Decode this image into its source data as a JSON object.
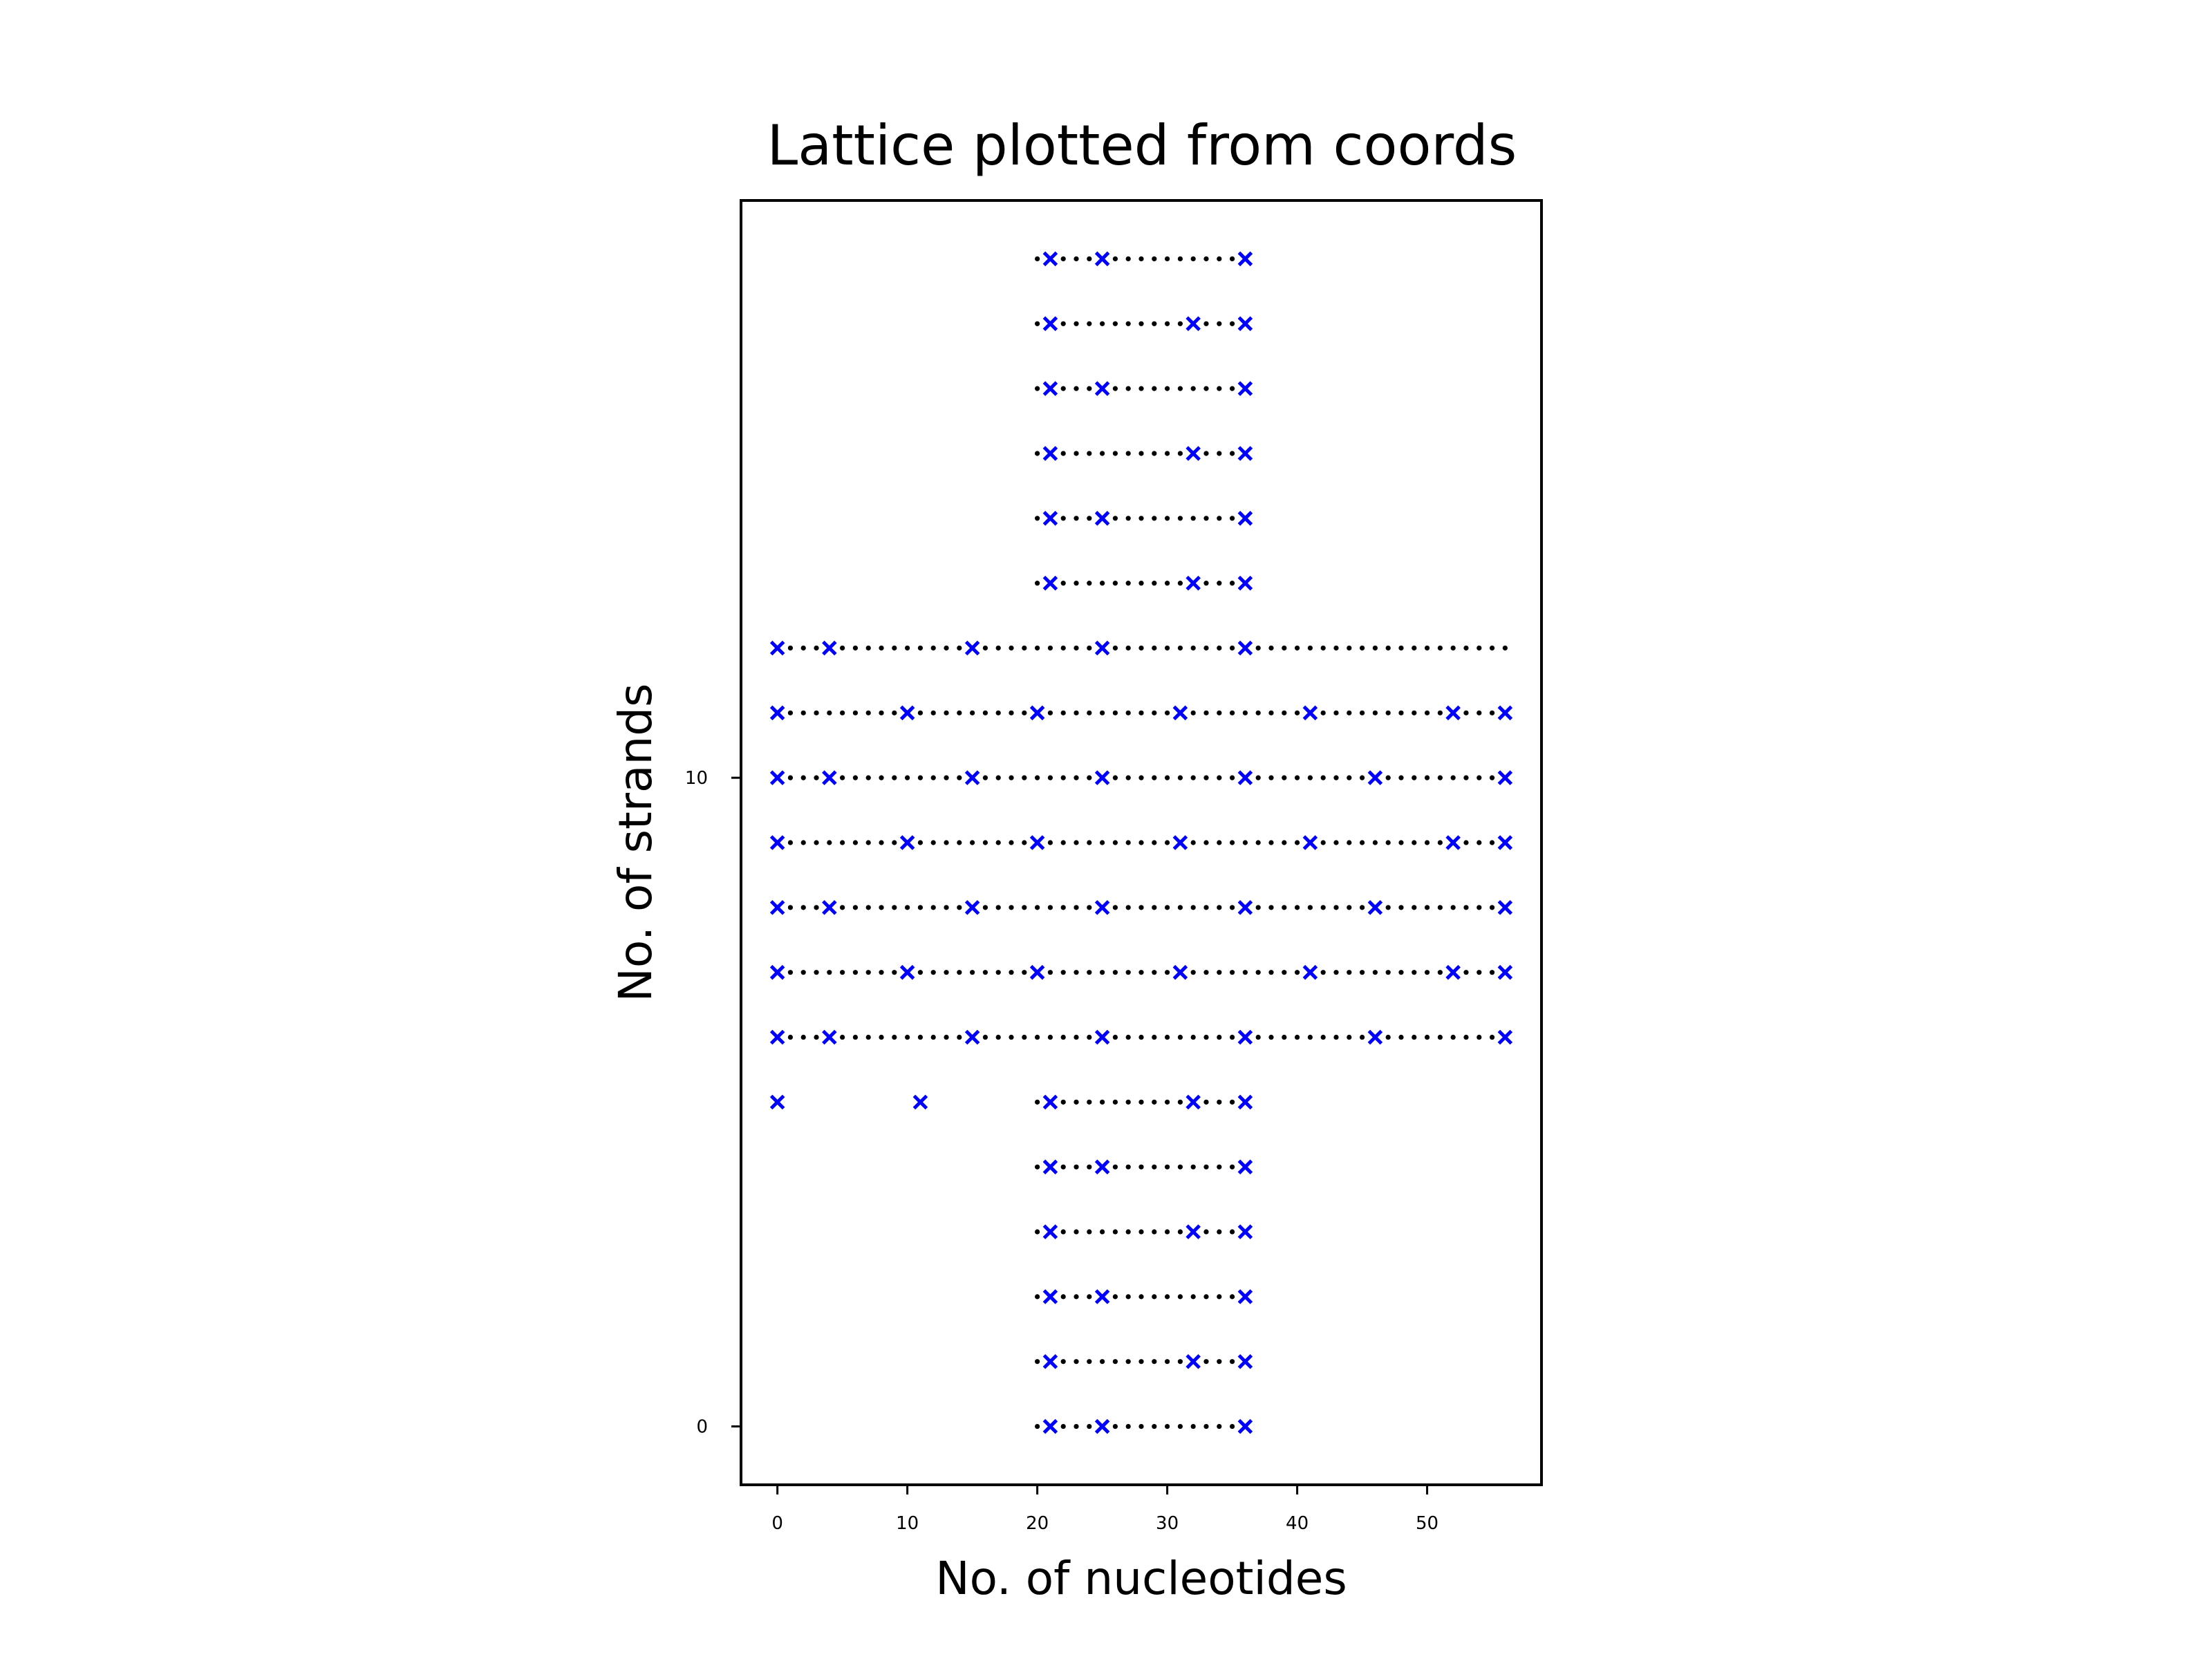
{
  "chart_data": {
    "type": "scatter",
    "title": "Lattice plotted from coords",
    "xlabel": "No. of nucleotides",
    "ylabel": "No. of strands",
    "xlim": [
      -2.8,
      58.8
    ],
    "ylim": [
      -0.9,
      18.9
    ],
    "xticks": [
      {
        "value": 0,
        "label": "0"
      },
      {
        "value": 10,
        "label": "10"
      },
      {
        "value": 20,
        "label": "20"
      },
      {
        "value": 30,
        "label": "30"
      },
      {
        "value": 40,
        "label": "40"
      },
      {
        "value": 50,
        "label": "50"
      }
    ],
    "yticks": [
      {
        "value": 0,
        "label": "0"
      },
      {
        "value": 10,
        "label": "10"
      }
    ],
    "grid": false,
    "colors": {
      "nucleotide": "#000000",
      "crossover": "#0000ff",
      "axes": "#000000"
    },
    "rows": [
      {
        "y": 0,
        "x_start": 20,
        "x_end": 36,
        "crossovers": [
          21,
          25,
          36
        ]
      },
      {
        "y": 1,
        "x_start": 20,
        "x_end": 36,
        "crossovers": [
          21,
          32,
          36
        ]
      },
      {
        "y": 2,
        "x_start": 20,
        "x_end": 36,
        "crossovers": [
          21,
          25,
          36
        ]
      },
      {
        "y": 3,
        "x_start": 20,
        "x_end": 36,
        "crossovers": [
          21,
          32,
          36
        ]
      },
      {
        "y": 4,
        "x_start": 20,
        "x_end": 36,
        "crossovers": [
          21,
          25,
          36
        ]
      },
      {
        "y": 5,
        "x_start": 20,
        "x_end": 36,
        "crossovers": [
          0,
          11,
          21,
          32,
          36
        ]
      },
      {
        "y": 6,
        "x_start": 0,
        "x_end": 56,
        "crossovers": [
          0,
          4,
          15,
          25,
          36,
          46,
          56
        ]
      },
      {
        "y": 7,
        "x_start": 0,
        "x_end": 56,
        "crossovers": [
          0,
          10,
          20,
          31,
          41,
          52,
          56
        ]
      },
      {
        "y": 8,
        "x_start": 0,
        "x_end": 56,
        "crossovers": [
          0,
          4,
          15,
          25,
          36,
          46,
          56
        ]
      },
      {
        "y": 9,
        "x_start": 0,
        "x_end": 56,
        "crossovers": [
          0,
          10,
          20,
          31,
          41,
          52,
          56
        ]
      },
      {
        "y": 10,
        "x_start": 0,
        "x_end": 56,
        "crossovers": [
          0,
          4,
          15,
          25,
          36,
          46,
          56
        ]
      },
      {
        "y": 11,
        "x_start": 0,
        "x_end": 56,
        "crossovers": [
          0,
          10,
          20,
          31,
          41,
          52,
          56
        ]
      },
      {
        "y": 12,
        "x_start": 0,
        "x_end": 56,
        "crossovers": [
          0,
          4,
          15,
          25,
          36
        ]
      },
      {
        "y": 13,
        "x_start": 20,
        "x_end": 36,
        "crossovers": [
          21,
          32,
          36
        ]
      },
      {
        "y": 14,
        "x_start": 20,
        "x_end": 36,
        "crossovers": [
          21,
          25,
          36
        ]
      },
      {
        "y": 15,
        "x_start": 20,
        "x_end": 36,
        "crossovers": [
          21,
          32,
          36
        ]
      },
      {
        "y": 16,
        "x_start": 20,
        "x_end": 36,
        "crossovers": [
          21,
          25,
          36
        ]
      },
      {
        "y": 17,
        "x_start": 20,
        "x_end": 36,
        "crossovers": [
          21,
          32,
          36
        ]
      },
      {
        "y": 18,
        "x_start": 20,
        "x_end": 36,
        "crossovers": [
          21,
          25,
          36
        ]
      }
    ]
  }
}
